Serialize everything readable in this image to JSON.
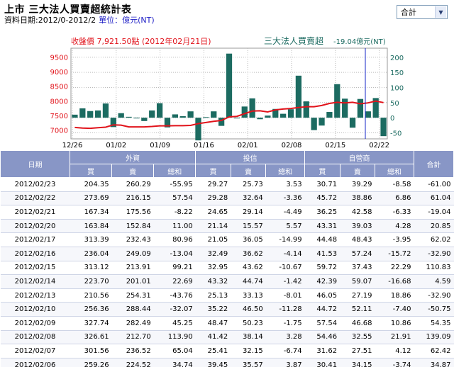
{
  "header": {
    "title": "上市 三大法人買賣超統計表",
    "data_period": "資料日期:2012/0-2012/2",
    "unit": "單位：億元(NT)"
  },
  "selector": {
    "selected": "合計"
  },
  "chart_data": {
    "type": "bar",
    "title_left": "收盤價 7,921.50點 (2012年02月21日)",
    "title_right": "三大法人買賣超",
    "title_right_value": "-19.04億元(NT)",
    "x_tick_labels": [
      "12/26",
      "01/02",
      "01/09",
      "01/16",
      "02/01",
      "02/08",
      "02/15",
      "02/22"
    ],
    "y_left_ticks": [
      "9500",
      "9000",
      "8500",
      "8000",
      "7500",
      "7000"
    ],
    "y_left_range": [
      6700,
      9800
    ],
    "y_right_ticks": [
      "200",
      "150",
      "100",
      "50",
      "0",
      "-50"
    ],
    "y_right_range": [
      -70,
      230
    ],
    "bar_values": [
      10,
      31,
      22,
      24,
      47,
      -31,
      15,
      3,
      0,
      -11,
      24,
      48,
      -32,
      11,
      5,
      21,
      -75,
      2,
      21,
      -27,
      212,
      -2,
      37,
      64,
      -5,
      7,
      29,
      13,
      28,
      139,
      54,
      -41,
      -26,
      19,
      111,
      63,
      -33,
      62,
      21,
      65,
      -61
    ],
    "price_values": [
      7090,
      7070,
      7060,
      7080,
      7100,
      7180,
      7170,
      7110,
      7110,
      7110,
      7125,
      7145,
      7145,
      7150,
      7150,
      7160,
      7220,
      7260,
      7300,
      7330,
      7450,
      7470,
      7560,
      7650,
      7660,
      7620,
      7690,
      7720,
      7740,
      7770,
      7800,
      7800,
      7840,
      7910,
      7950,
      7930,
      7950,
      7900,
      7930,
      7990,
      7940
    ],
    "colors": {
      "bar": "#1c6b61",
      "price_line": "#e1131b",
      "marker": "#1526c8"
    }
  },
  "table": {
    "group_headers": {
      "date": "日期",
      "foreign": "外資",
      "trust": "投信",
      "dealer": "自營商",
      "total": "合計"
    },
    "sub_headers": [
      "買",
      "賣",
      "總和"
    ],
    "rows": [
      [
        "2012/02/23",
        "204.35",
        "260.29",
        "-55.95",
        "29.27",
        "25.73",
        "3.53",
        "30.71",
        "39.29",
        "-8.58",
        "-61.00"
      ],
      [
        "2012/02/22",
        "273.69",
        "216.15",
        "57.54",
        "29.28",
        "32.64",
        "-3.36",
        "45.72",
        "38.86",
        "6.86",
        "61.04"
      ],
      [
        "2012/02/21",
        "167.34",
        "175.56",
        "-8.22",
        "24.65",
        "29.14",
        "-4.49",
        "36.25",
        "42.58",
        "-6.33",
        "-19.04"
      ],
      [
        "2012/02/20",
        "163.84",
        "152.84",
        "11.00",
        "21.14",
        "15.57",
        "5.57",
        "43.31",
        "39.03",
        "4.28",
        "20.85"
      ],
      [
        "2012/02/17",
        "313.39",
        "232.43",
        "80.96",
        "21.05",
        "36.05",
        "-14.99",
        "44.48",
        "48.43",
        "-3.95",
        "62.02"
      ],
      [
        "2012/02/16",
        "236.04",
        "249.09",
        "-13.04",
        "32.49",
        "36.62",
        "-4.14",
        "41.53",
        "57.24",
        "-15.72",
        "-32.90"
      ],
      [
        "2012/02/15",
        "313.12",
        "213.91",
        "99.21",
        "32.95",
        "43.62",
        "-10.67",
        "59.72",
        "37.43",
        "22.29",
        "110.83"
      ],
      [
        "2012/02/14",
        "223.70",
        "201.01",
        "22.69",
        "43.32",
        "44.74",
        "-1.42",
        "42.39",
        "59.07",
        "-16.68",
        "4.59"
      ],
      [
        "2012/02/13",
        "210.56",
        "254.31",
        "-43.76",
        "25.13",
        "33.13",
        "-8.01",
        "46.05",
        "27.19",
        "18.86",
        "-32.90"
      ],
      [
        "2012/02/10",
        "256.36",
        "288.44",
        "-32.07",
        "35.22",
        "46.50",
        "-11.28",
        "44.72",
        "52.11",
        "-7.40",
        "-50.75"
      ],
      [
        "2012/02/09",
        "327.74",
        "282.49",
        "45.25",
        "48.47",
        "50.23",
        "-1.75",
        "57.54",
        "46.68",
        "10.86",
        "54.35"
      ],
      [
        "2012/02/08",
        "326.61",
        "212.70",
        "113.90",
        "41.42",
        "38.14",
        "3.28",
        "54.46",
        "32.55",
        "21.91",
        "139.09"
      ],
      [
        "2012/02/07",
        "301.56",
        "236.52",
        "65.04",
        "25.41",
        "32.15",
        "-6.74",
        "31.62",
        "27.51",
        "4.12",
        "62.42"
      ],
      [
        "2012/02/06",
        "259.26",
        "224.52",
        "34.74",
        "39.45",
        "35.57",
        "3.87",
        "30.41",
        "34.15",
        "-3.74",
        "34.87"
      ]
    ]
  }
}
